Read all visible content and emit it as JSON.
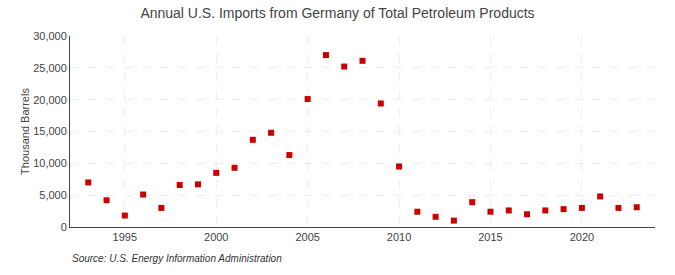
{
  "chart_data": {
    "type": "scatter",
    "title": "Annual U.S. Imports from Germany of Total Petroleum Products",
    "ylabel": "Thousand Barrels",
    "annotation": "Source: U.S. Energy Information Administration",
    "x": [
      1993,
      1994,
      1995,
      1996,
      1997,
      1998,
      1999,
      2000,
      2001,
      2002,
      2003,
      2004,
      2005,
      2006,
      2007,
      2008,
      2009,
      2010,
      2011,
      2012,
      2013,
      2014,
      2015,
      2016,
      2017,
      2018,
      2019,
      2020,
      2021,
      2022,
      2023
    ],
    "values": [
      7000,
      4200,
      1800,
      5100,
      3000,
      6600,
      6700,
      8500,
      9300,
      13700,
      14800,
      11300,
      20100,
      27000,
      25200,
      26100,
      19400,
      9500,
      2400,
      1600,
      1000,
      3900,
      2400,
      2600,
      2000,
      2600,
      2800,
      3000,
      4800,
      3000,
      3100
    ],
    "color": "#cc0000",
    "marker": "square",
    "xlim": [
      1992,
      2024
    ],
    "xticks": [
      1995,
      2000,
      2005,
      2010,
      2015,
      2020
    ],
    "ylim": [
      0,
      30000
    ],
    "yticks": [
      0,
      {
        "value": 5000,
        "label": "5,000"
      },
      {
        "value": 10000,
        "label": "10,000"
      },
      {
        "value": 15000,
        "label": "15,000"
      },
      {
        "value": 20000,
        "label": "20,000"
      },
      {
        "value": 25000,
        "label": "25,000"
      },
      {
        "value": 30000,
        "label": "30,000"
      }
    ],
    "grid": true
  }
}
